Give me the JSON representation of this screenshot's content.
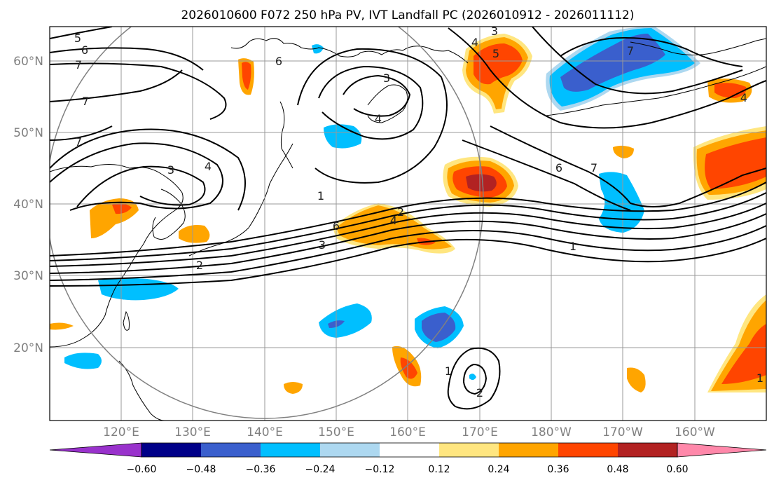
{
  "title": "2026010600 F072 250 hPa PV, IVT Landfall PC (2026010912 - 2026011112)",
  "map": {
    "lon_range_east": [
      110,
      210
    ],
    "lat_range": [
      10,
      65
    ],
    "lat_labels": [
      "20°N",
      "30°N",
      "40°N",
      "50°N",
      "60°N"
    ],
    "lat_values": [
      20,
      30,
      40,
      50,
      60
    ],
    "lon_labels": [
      "120°E",
      "130°E",
      "140°E",
      "150°E",
      "160°E",
      "170°E",
      "180°W",
      "170°W",
      "160°W"
    ],
    "lon_values": [
      120,
      130,
      140,
      150,
      160,
      170,
      180,
      190,
      200
    ]
  },
  "colorbar": {
    "tick_labels": [
      "−0.60",
      "−0.48",
      "−0.36",
      "−0.24",
      "−0.12",
      "0.12",
      "0.24",
      "0.36",
      "0.48",
      "0.60"
    ],
    "colors": [
      "#9932cc",
      "#000088",
      "#3a5fcd",
      "#00bfff",
      "#add8f0",
      "#ffffff",
      "#ffe680",
      "#ffa500",
      "#ff4500",
      "#b22222",
      "#ff88aa"
    ]
  },
  "contour_labels": [
    "5",
    "6",
    "7",
    "7",
    "7",
    "3",
    "4",
    "6",
    "3",
    "4",
    "3",
    "4",
    "5",
    "7",
    "6",
    "7",
    "1",
    "6",
    "3",
    "4",
    "2",
    "2",
    "1",
    "2",
    "4",
    "1",
    "1"
  ],
  "colors": {
    "negative_text": "#000000",
    "grid": "#999999"
  }
}
